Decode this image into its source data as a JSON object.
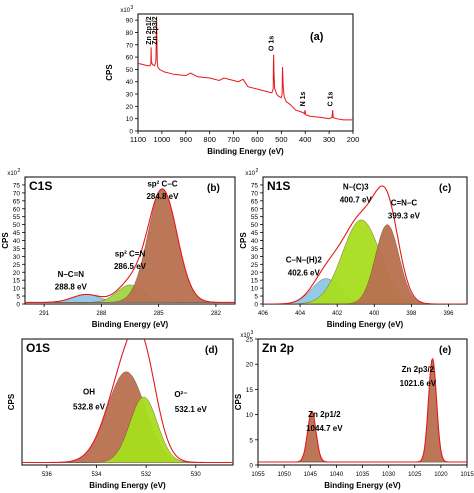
{
  "chart_data": [
    {
      "id": "a",
      "type": "line",
      "panel_label": "(a)",
      "title": "",
      "xlabel": "Binding Energy (eV)",
      "ylabel": "CPS",
      "y_multiplier": "x10",
      "y_multiplier_exp": "3",
      "xlim": [
        1100,
        200
      ],
      "ylim": [
        0,
        95
      ],
      "x_ticks": [
        1100,
        1000,
        900,
        800,
        700,
        600,
        500,
        400,
        300,
        200
      ],
      "y_ticks": [
        0,
        10,
        20,
        30,
        40,
        50,
        60,
        70,
        80,
        90
      ],
      "line_color": "#e31a1c",
      "series": [
        {
          "x": [
            1100,
            1080,
            1060,
            1050,
            1046,
            1045,
            1044,
            1040,
            1030,
            1025,
            1023,
            1022,
            1021,
            1019,
            1017,
            1010,
            990,
            950,
            900,
            880,
            850,
            800,
            760,
            740,
            700,
            680,
            660,
            640,
            600,
            560,
            540,
            534,
            533,
            532,
            531,
            528,
            520,
            510,
            500,
            497,
            495,
            492,
            488,
            480,
            460,
            440,
            410,
            403,
            401,
            399,
            396,
            380,
            330,
            300,
            288,
            285,
            283,
            270,
            240,
            210,
            200
          ],
          "y": [
            55,
            54,
            53,
            53,
            55,
            68,
            57,
            54,
            53,
            57,
            80,
            92,
            75,
            56,
            52,
            50,
            48,
            46,
            45,
            47,
            44,
            43,
            41,
            43,
            41,
            40,
            42,
            36,
            34,
            32,
            31,
            34,
            54,
            62,
            50,
            35,
            30,
            28,
            27,
            30,
            52,
            36,
            28,
            24,
            21,
            17,
            15,
            14,
            17,
            14,
            13,
            12,
            11,
            10,
            11,
            17,
            11,
            10,
            9,
            9,
            9
          ]
        }
      ],
      "annotations": [
        {
          "text": "Zn 2p1/2",
          "x": 1045,
          "y": 70
        },
        {
          "text": "Zn 2p3/2",
          "x": 1021,
          "y": 70
        },
        {
          "text": "O 1s",
          "x": 532,
          "y": 65
        },
        {
          "text": "N 1s",
          "x": 400,
          "y": 20
        },
        {
          "text": "C 1s",
          "x": 285,
          "y": 20
        }
      ]
    },
    {
      "id": "b",
      "type": "area",
      "element_label": "C1S",
      "panel_label": "(b)",
      "xlabel": "Binding Energy (eV)",
      "ylabel": "CPS",
      "y_multiplier": "x10",
      "y_multiplier_exp": "2",
      "xlim": [
        292,
        281
      ],
      "ylim": [
        0,
        80
      ],
      "x_ticks": [
        291,
        288,
        285,
        282
      ],
      "y_ticks": [
        0,
        5,
        10,
        15,
        20,
        25,
        30,
        35,
        40,
        45,
        50,
        55,
        60,
        65,
        70,
        75
      ],
      "peaks": [
        {
          "center": 288.8,
          "height": 5,
          "fwhm": 1.7,
          "color": "#8ec6e6"
        },
        {
          "center": 286.5,
          "height": 11,
          "fwhm": 1.6,
          "color": "#9fd640"
        },
        {
          "center": 284.8,
          "height": 71,
          "fwhm": 1.8,
          "color": "#b87050"
        }
      ],
      "baseline": 1,
      "annotations": [
        {
          "text": "N–C=N",
          "x": 289.6,
          "y": 17
        },
        {
          "text": "288.8 eV",
          "x": 289.6,
          "y": 9
        },
        {
          "text": "sp² C=N",
          "x": 286.5,
          "y": 30
        },
        {
          "text": "286.5 eV",
          "x": 286.5,
          "y": 22
        },
        {
          "text": "sp² C–C",
          "x": 284.8,
          "y": 74
        },
        {
          "text": "284.8 eV",
          "x": 284.8,
          "y": 66
        }
      ]
    },
    {
      "id": "c",
      "type": "area",
      "element_label": "N1S",
      "panel_label": "(c)",
      "xlabel": "Binding Energy (eV)",
      "ylabel": "CPS",
      "y_multiplier": "x10",
      "y_multiplier_exp": "2",
      "xlim": [
        406,
        395
      ],
      "ylim": [
        0,
        80
      ],
      "x_ticks": [
        406,
        404,
        402,
        400,
        398,
        396
      ],
      "y_ticks": [
        0,
        5,
        10,
        15,
        20,
        25,
        30,
        35,
        40,
        45,
        50,
        55,
        60,
        65,
        70,
        75
      ],
      "peaks": [
        {
          "center": 402.6,
          "height": 16,
          "fwhm": 1.8,
          "color": "#8ec6e6"
        },
        {
          "center": 400.7,
          "height": 53,
          "fwhm": 2.4,
          "color": "#a8dd1e"
        },
        {
          "center": 399.3,
          "height": 50,
          "fwhm": 1.5,
          "color": "#b87050"
        }
      ],
      "baseline": 0,
      "annotations": [
        {
          "text": "N–(C)3",
          "x": 401.0,
          "y": 72
        },
        {
          "text": "400.7 eV",
          "x": 401.0,
          "y": 64
        },
        {
          "text": "C=N–C",
          "x": 398.4,
          "y": 62
        },
        {
          "text": "399.3 eV",
          "x": 398.4,
          "y": 54
        },
        {
          "text": "C–N–(H)2",
          "x": 403.8,
          "y": 26
        },
        {
          "text": "402.6 eV",
          "x": 403.8,
          "y": 18
        }
      ]
    },
    {
      "id": "d",
      "type": "area",
      "element_label": "O1S",
      "panel_label": "(d)",
      "xlabel": "Binding Energy (eV)",
      "ylabel": "CPS",
      "y_multiplier": "",
      "y_multiplier_exp": "",
      "xlim": [
        537,
        528.5
      ],
      "ylim": [
        0,
        1
      ],
      "x_ticks": [
        536,
        534,
        532,
        530
      ],
      "y_ticks": [],
      "peaks": [
        {
          "center": 532.8,
          "height": 0.72,
          "fwhm": 1.8,
          "color": "#b87050"
        },
        {
          "center": 532.1,
          "height": 0.52,
          "fwhm": 1.3,
          "color": "#a8dd1e"
        }
      ],
      "baseline": 0.02,
      "annotations": [
        {
          "text": "OH",
          "x": 534.3,
          "y": 0.56
        },
        {
          "text": "532.8 eV",
          "x": 534.3,
          "y": 0.44
        },
        {
          "text": "O²⁻",
          "x": 530.6,
          "y": 0.54
        },
        {
          "text": "532.1 eV",
          "x": 530.2,
          "y": 0.42
        }
      ]
    },
    {
      "id": "e",
      "type": "area",
      "element_label": "Zn 2p",
      "panel_label": "(e)",
      "xlabel": "Binding Energy (eV)",
      "ylabel": "CPS",
      "y_multiplier": "x10",
      "y_multiplier_exp": "3",
      "xlim": [
        1055,
        1015
      ],
      "ylim": [
        0,
        25
      ],
      "x_ticks": [
        1055,
        1050,
        1045,
        1040,
        1035,
        1030,
        1025,
        1020,
        1015
      ],
      "y_ticks": [
        0,
        5,
        10,
        15,
        20,
        25
      ],
      "peaks": [
        {
          "center": 1044.7,
          "height": 10,
          "fwhm": 1.9,
          "color": "#b87050"
        },
        {
          "center": 1021.6,
          "height": 20.5,
          "fwhm": 1.8,
          "color": "#b87050"
        }
      ],
      "baseline": 0.6,
      "annotations": [
        {
          "text": "Zn 2p1/2",
          "x": 1042.3,
          "y": 9.5
        },
        {
          "text": "1044.7 eV",
          "x": 1042.3,
          "y": 6.7
        },
        {
          "text": "Zn 2p3/2",
          "x": 1024.4,
          "y": 18.5
        },
        {
          "text": "1021.6 eV",
          "x": 1024.4,
          "y": 15.7
        }
      ]
    }
  ]
}
